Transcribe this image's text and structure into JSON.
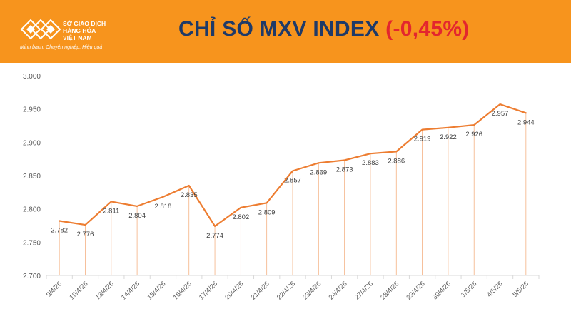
{
  "header": {
    "org_lines": [
      "SỞ GIAO DỊCH",
      "HÀNG HÓA",
      "VIỆT NAM"
    ],
    "slogan": "Minh bạch, Chuyên nghiệp, Hiệu quả",
    "title": "CHỈ SỐ MXV INDEX",
    "change": "(-0,45%)",
    "colors": {
      "background": "#f7941d",
      "title": "#1f3a68",
      "change": "#e3262e"
    },
    "logo_icon": "mxv-logo-icon"
  },
  "chart_data": {
    "type": "line",
    "categories": [
      "9/4/26",
      "10/4/26",
      "13/4/26",
      "14/4/26",
      "15/4/26",
      "16/4/26",
      "17/4/26",
      "20/4/26",
      "21/4/26",
      "22/4/26",
      "23/4/26",
      "24/4/26",
      "27/4/26",
      "28/4/26",
      "29/4/26",
      "30/4/26",
      "1/5/26",
      "4/5/26",
      "5/5/26"
    ],
    "values": [
      2782,
      2776,
      2811,
      2804,
      2818,
      2835,
      2774,
      2802,
      2809,
      2857,
      2869,
      2873,
      2883,
      2886,
      2919,
      2922,
      2926,
      2957,
      2944
    ],
    "data_labels": [
      "2.782",
      "2.776",
      "2.811",
      "2.804",
      "2.818",
      "2.835",
      "2.774",
      "2.802",
      "2.809",
      "2.857",
      "2.869",
      "2.873",
      "2.883",
      "2.886",
      "2.919",
      "2.922",
      "2.926",
      "2.957",
      "2.944"
    ],
    "y_ticks": [
      2700,
      2750,
      2800,
      2850,
      2900,
      2950,
      3000
    ],
    "y_tick_labels": [
      "2.700",
      "2.750",
      "2.800",
      "2.850",
      "2.900",
      "2.950",
      "3.000"
    ],
    "ylim": [
      2700,
      3000
    ],
    "line_color": "#ed7d31",
    "drop_line_color": "#f4b183",
    "grid": false,
    "label_positions": [
      "below",
      "below",
      "below",
      "below",
      "below",
      "below",
      "below",
      "below",
      "below",
      "below",
      "below",
      "below",
      "below",
      "below",
      "below",
      "below",
      "below",
      "below",
      "below"
    ]
  }
}
